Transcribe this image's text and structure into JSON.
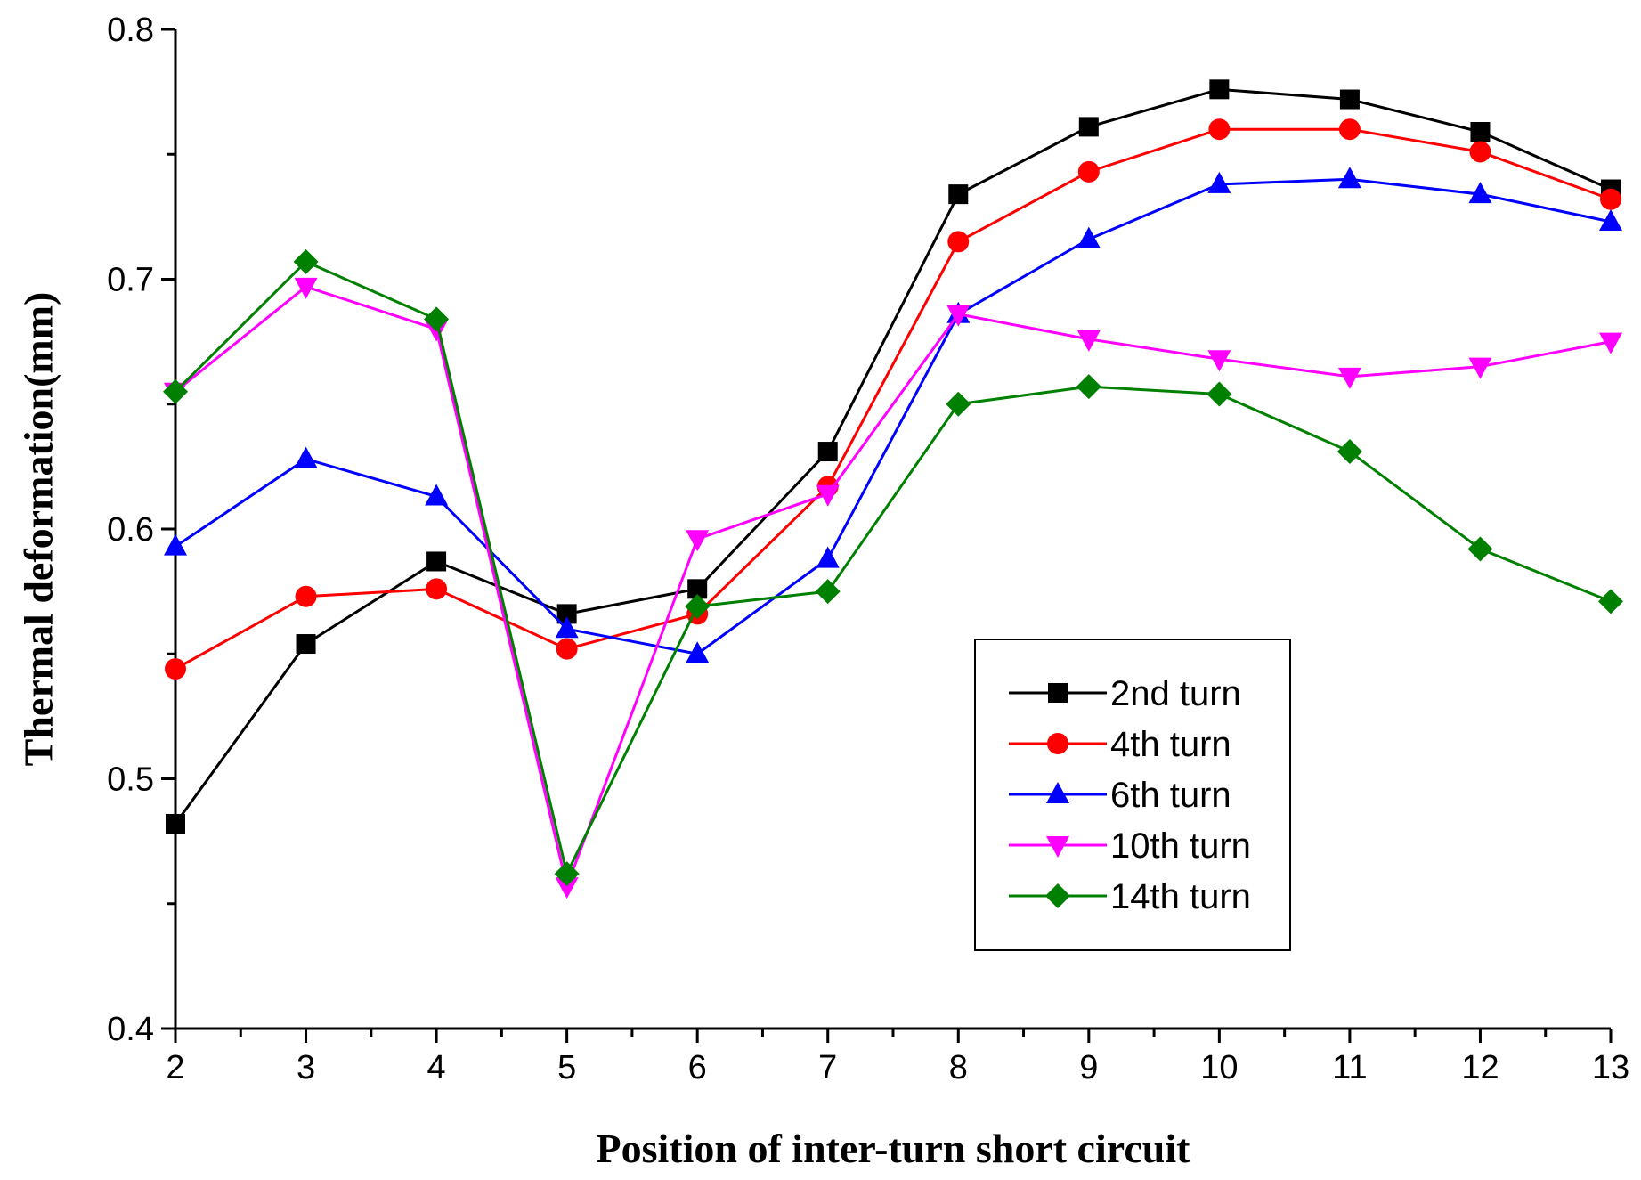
{
  "chart_data": {
    "type": "line",
    "title": "",
    "xlabel": "Position of inter-turn short circuit",
    "ylabel": "Thermal deformation(mm)",
    "xlim": [
      2,
      13
    ],
    "ylim": [
      0.4,
      0.8
    ],
    "x": [
      2,
      3,
      4,
      5,
      6,
      7,
      8,
      9,
      10,
      11,
      12,
      13
    ],
    "x_ticks": [
      "2",
      "3",
      "4",
      "5",
      "6",
      "7",
      "8",
      "9",
      "10",
      "11",
      "12",
      "13"
    ],
    "y_ticks": [
      "0.4",
      "0.5",
      "0.6",
      "0.7",
      "0.8"
    ],
    "y_tick_values": [
      0.4,
      0.5,
      0.6,
      0.7,
      0.8
    ],
    "grid": false,
    "legend_position": "center-right",
    "series": [
      {
        "name": "2nd turn",
        "color": "#000000",
        "marker": "square",
        "values": [
          0.482,
          0.554,
          0.587,
          0.566,
          0.576,
          0.631,
          0.734,
          0.761,
          0.776,
          0.772,
          0.759,
          0.736
        ]
      },
      {
        "name": "4th turn",
        "color": "#ff0000",
        "marker": "circle",
        "values": [
          0.544,
          0.573,
          0.576,
          0.552,
          0.566,
          0.617,
          0.715,
          0.743,
          0.76,
          0.76,
          0.751,
          0.732
        ]
      },
      {
        "name": "6th turn",
        "color": "#0000ff",
        "marker": "triangle-up",
        "values": [
          0.593,
          0.628,
          0.613,
          0.56,
          0.55,
          0.588,
          0.686,
          0.716,
          0.738,
          0.74,
          0.734,
          0.723
        ]
      },
      {
        "name": "10th turn",
        "color": "#ff00ff",
        "marker": "triangle-down",
        "values": [
          0.655,
          0.697,
          0.68,
          0.457,
          0.596,
          0.614,
          0.686,
          0.676,
          0.668,
          0.661,
          0.665,
          0.675
        ]
      },
      {
        "name": "14th turn",
        "color": "#008000",
        "marker": "diamond",
        "values": [
          0.655,
          0.707,
          0.684,
          0.462,
          0.569,
          0.575,
          0.65,
          0.657,
          0.654,
          0.631,
          0.592,
          0.571
        ]
      }
    ]
  }
}
